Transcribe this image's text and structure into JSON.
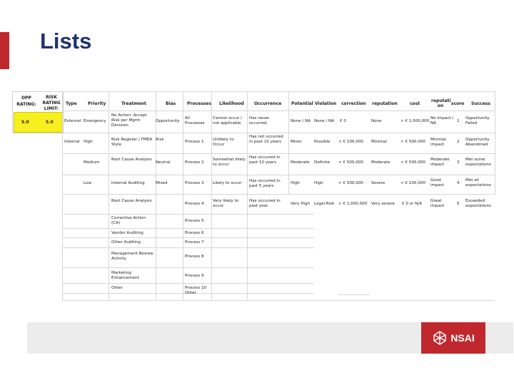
{
  "title": "Lists",
  "left_panel": {
    "opp_rating_label": "OPP RATING:",
    "risk_rating_label": "RISK RATING LIMIT:",
    "opp_value": "5.0",
    "risk_value": "5.0"
  },
  "headers": {
    "type": "Type",
    "priority": "Priority",
    "treatment": "Treatment",
    "bias": "Bias",
    "processes": "Processes",
    "likelihood": "Likelihood",
    "occurrence": "Occurrence",
    "potential": "Potential",
    "violation": "Violation",
    "correction": "correction",
    "reputation": "reputation",
    "cost": "cost",
    "reputation2": "reputati on",
    "score": "score",
    "success": "Success"
  },
  "type": [
    "External",
    "Internal"
  ],
  "priority": [
    "Emergency",
    "High",
    "Medium",
    "Low"
  ],
  "treatment": [
    "No Action: Accept Risk per Mgmt Decision",
    "Risk Register / FMEA Style",
    "Root Cause Analysis",
    "Internal Auditing",
    "Root Cause Analysis",
    "Corrective Action (CA)",
    "Vendor Auditing",
    "Other Auditing",
    "Management Review Activity",
    "Marketing Enhancement",
    "Other"
  ],
  "bias": [
    "Opportunity",
    "Risk",
    "Neutral",
    "Mixed"
  ],
  "processes": [
    "All Processes",
    "Process 1",
    "Process 2",
    "Process 3",
    "Process 4",
    "Process 5",
    "Process 6",
    "Process 7",
    "Process 8",
    "Process 9",
    "Process 10 Other"
  ],
  "likelihood": [
    "Cannot occur / not applicable",
    "Unlikely to Occur",
    "Somewhat likely to occur",
    "Likely to occur",
    "Very likely to occur"
  ],
  "occurrence": [
    "Has never occurred.",
    "Has not occurred in past 10 years",
    "Has occurred in past 10 years",
    "Has occurred in past 5 years",
    "Has occurred in past year."
  ],
  "potential": [
    "None / NA",
    "Minor",
    "Moderate",
    "High",
    "Very High"
  ],
  "violation": [
    "None / NA",
    "Possible",
    "Definite",
    "High",
    "Legal Risk"
  ],
  "correction": [
    "€ 0",
    "< € 100,000",
    "< € 500,000",
    "> € 500,000",
    "> € 1,000,000"
  ],
  "reputation": [
    "None",
    "Minimal",
    "Moderate",
    "Severe",
    "Very severe"
  ],
  "cost": [
    "> € 1,000,000",
    "> € 500,000",
    "< € 500,000",
    "< € 100,000",
    "€ 0 or N/A"
  ],
  "reputation2": [
    "No impact / NA",
    "Minimal impact",
    "Moderate impact",
    "Good impact",
    "Great impact"
  ],
  "score": [
    "1",
    "2",
    "3",
    "4",
    "5"
  ],
  "success": [
    "Opportunity Failed",
    "Opportunity Abandoned",
    "Met some expectations",
    "Met all expectations",
    "Exceeded expectations"
  ],
  "logo_text": "NSAI"
}
